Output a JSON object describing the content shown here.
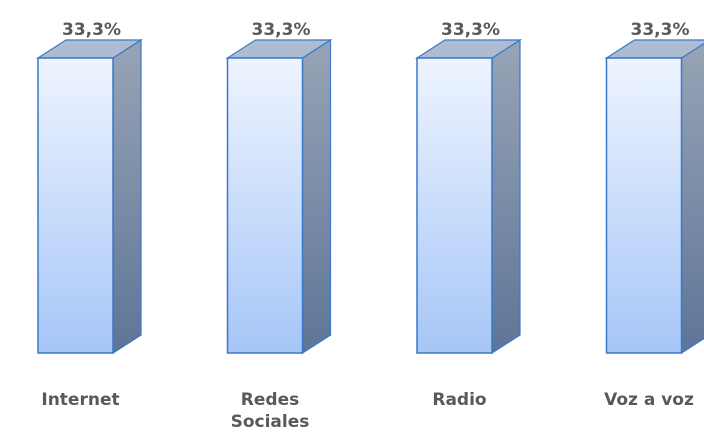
{
  "chart_data": {
    "type": "bar3d",
    "categories": [
      "Internet",
      "Redes Sociales",
      "Radio",
      "Voz a voz"
    ],
    "values": [
      33.3,
      33.3,
      33.3,
      33.3
    ],
    "value_labels": [
      "33,3%",
      "33,3%",
      "33,3%",
      "33,3%"
    ],
    "color": "#a9c8f8"
  }
}
